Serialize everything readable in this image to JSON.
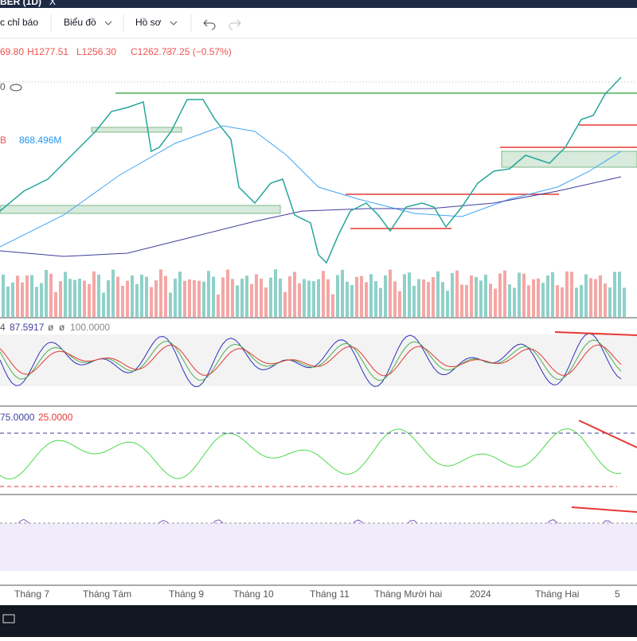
{
  "toolbar": {
    "symbol": "BER (1D)",
    "close_icon": "X",
    "items": [
      "c chỉ báo",
      "Biểu đồ",
      "Hồ sơ"
    ]
  },
  "legend": {
    "ohlc": [
      "69.80",
      "H1277.51",
      "L1256.30",
      "C1262.73",
      "−7.25 (−0.57%)"
    ],
    "price_line": "0",
    "volume": [
      "B",
      "868.496M"
    ]
  },
  "indicators": [
    {
      "labels": [
        "4",
        "87.5917",
        "ø",
        "ø",
        "100.0000"
      ]
    },
    {
      "labels": [
        "75.0000",
        "25.0000"
      ]
    }
  ],
  "x_axis_labels": [
    "Tháng 7",
    "Tháng Tám",
    "Tháng 9",
    "Tháng 10",
    "Tháng 11",
    "Tháng Mười hai",
    "2024",
    "Tháng Hai",
    "5"
  ]
}
